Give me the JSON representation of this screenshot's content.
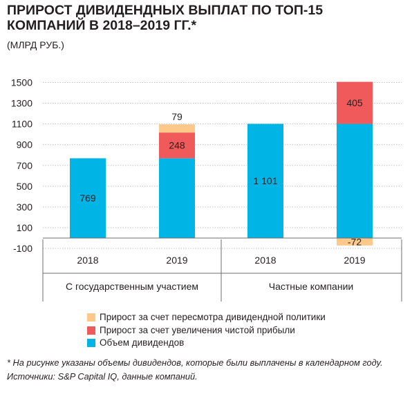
{
  "title": "ПРИРОСТ ДИВИДЕНДНЫХ ВЫПЛАТ ПО ТОП-15 КОМПАНИЙ В 2018–2019 ГГ.*",
  "subtitle": "(МЛРД РУБ.)",
  "footnote": {
    "line1": "* На рисунке указаны объемы дивидендов, которые были выплачены в календарном году.",
    "line2": "Источники: S&P Capital IQ, данные компаний."
  },
  "colors": {
    "volume": "#00b5e5",
    "net_profit": "#f15a5a",
    "policy": "#fdc98a",
    "grid": "#bfbfbf",
    "axis": "#6d6e71"
  },
  "chart_data": {
    "type": "bar",
    "stacked": true,
    "ylim": [
      -100,
      1500
    ],
    "yticks": [
      1500,
      1300,
      1100,
      900,
      700,
      500,
      300,
      100,
      -100
    ],
    "grid": true,
    "legend_position": "bottom",
    "groups": [
      {
        "label": "С государственным участием",
        "categories": [
          "2018",
          "2019"
        ]
      },
      {
        "label": "Частные компании",
        "categories": [
          "2018",
          "2019"
        ]
      }
    ],
    "categories": [
      "2018",
      "2019",
      "2018",
      "2019"
    ],
    "series": [
      {
        "key": "volume",
        "name": "Объем дивидендов",
        "color": "#00b5e5",
        "values": [
          769,
          769,
          1101,
          1101
        ],
        "labels": [
          "769",
          "",
          "1 101",
          ""
        ]
      },
      {
        "key": "net_profit",
        "name": "Прирост за счет увеличения чистой прибыли",
        "color": "#f15a5a",
        "values": [
          0,
          248,
          0,
          405
        ],
        "labels": [
          "",
          "248",
          "",
          "405"
        ]
      },
      {
        "key": "policy",
        "name": "Прирост за счет пересмотра дивидендной политики",
        "color": "#fdc98a",
        "values": [
          0,
          79,
          0,
          -72
        ],
        "labels": [
          "",
          "79",
          "",
          "-72"
        ]
      }
    ]
  },
  "legend": [
    {
      "label": "Прирост за счет пересмотра дивидендной политики",
      "color": "#fdc98a"
    },
    {
      "label": "Прирост за счет увеличения чистой прибыли",
      "color": "#f15a5a"
    },
    {
      "label": "Объем дивидендов",
      "color": "#00b5e5"
    }
  ]
}
